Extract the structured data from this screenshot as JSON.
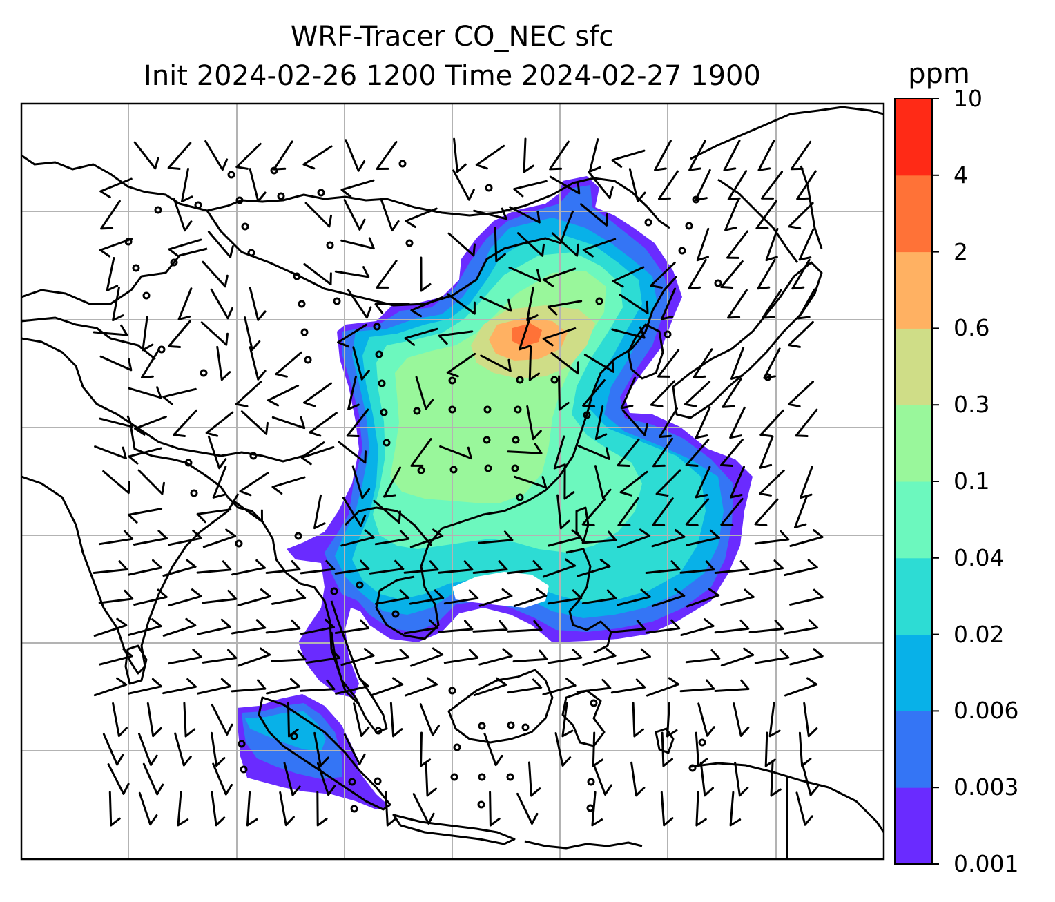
{
  "title": {
    "line1": "WRF-Tracer CO_NEC sfc",
    "line2": "Init 2024-02-26 1200 Time 2024-02-27 1900"
  },
  "colorbar": {
    "unit": "ppm",
    "levels": [
      "0.001",
      "0.003",
      "0.006",
      "0.02",
      "0.04",
      "0.1",
      "0.3",
      "0.6",
      "2",
      "4",
      "10"
    ],
    "colors": [
      "#6a2bff",
      "#3475f5",
      "#08b1e8",
      "#2ddcd4",
      "#6cf8be",
      "#99f79b",
      "#cfdd87",
      "#ffb162",
      "#ff7237",
      "#ff2a16"
    ]
  },
  "map": {
    "projection": "lat-lon",
    "gridlines": true,
    "coastlines": true,
    "wind_barbs": true
  }
}
